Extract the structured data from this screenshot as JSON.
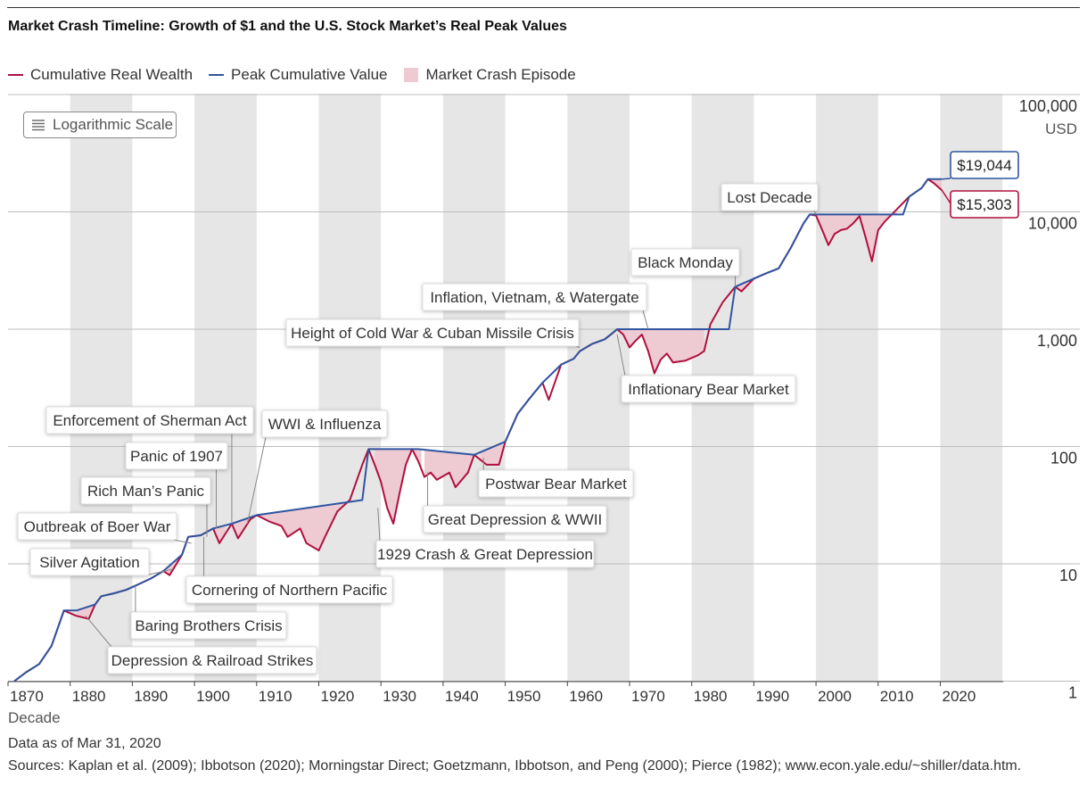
{
  "title": "Market Crash Timeline: Growth of $1 and the U.S. Stock Market’s Real Peak Values",
  "legend": [
    {
      "label": "Cumulative Real Wealth",
      "color": "#b0103e",
      "kind": "line"
    },
    {
      "label": "Peak Cumulative Value",
      "color": "#2f55a0",
      "kind": "line"
    },
    {
      "label": "Market Crash Episode",
      "color": "#eecad3",
      "kind": "box"
    }
  ],
  "scale_badge": {
    "label": "Logarithmic Scale",
    "icon": "list-icon"
  },
  "footer": {
    "date": "Data as of Mar 31, 2020",
    "sources": "Sources: Kaplan et al. (2009); Ibbotson (2020); Morningstar Direct; Goetzmann, Ibbotson, and Peng (2000); Pierce (1982); www.econ.yale.edu/~shiller/data.htm."
  },
  "colors": {
    "wealth": "#b0103e",
    "peak": "#2f55a0",
    "crash_fill": "#eecad3",
    "band": "#e6e6e6",
    "grid": "#bdbdbd"
  },
  "chart_data": {
    "type": "line",
    "y_scale": "log",
    "ylim": [
      1,
      100000
    ],
    "xlim": [
      1870,
      2029
    ],
    "x_ticks": [
      "1870",
      "1880",
      "1890",
      "1900",
      "1910",
      "1920",
      "1930",
      "1940",
      "1950",
      "1960",
      "1970",
      "1980",
      "1990",
      "2000",
      "2010",
      "2020"
    ],
    "y_ticks": [
      {
        "value": 1,
        "label": "1"
      },
      {
        "value": 10,
        "label": "10"
      },
      {
        "value": 100,
        "label": "100"
      },
      {
        "value": 1000,
        "label": "1,000"
      },
      {
        "value": 10000,
        "label": "10,000"
      },
      {
        "value": 100000,
        "label": "100,000"
      }
    ],
    "y_unit": "USD",
    "xlabel": "Decade",
    "shaded_decades": [
      1880,
      1900,
      1920,
      1940,
      1960,
      1980,
      2000,
      2020
    ],
    "series": [
      {
        "name": "Cumulative Real Wealth",
        "x": [
          1871,
          1873,
          1875,
          1877,
          1879,
          1881,
          1883,
          1884,
          1885,
          1887,
          1889,
          1891,
          1893,
          1895,
          1896,
          1898,
          1899,
          1901,
          1903,
          1904,
          1906,
          1907,
          1909,
          1910,
          1912,
          1914,
          1915,
          1917,
          1918,
          1920,
          1921,
          1923,
          1925,
          1927,
          1928,
          1929,
          1930,
          1931,
          1932,
          1933,
          1934,
          1935,
          1936,
          1937,
          1938,
          1939,
          1941,
          1942,
          1944,
          1945,
          1947,
          1949,
          1950,
          1952,
          1954,
          1956,
          1957,
          1959,
          1961,
          1962,
          1964,
          1966,
          1967,
          1968,
          1969,
          1970,
          1971,
          1972,
          1973,
          1974,
          1975,
          1976,
          1977,
          1979,
          1981,
          1982,
          1983,
          1985,
          1987,
          1988,
          1990,
          1992,
          1994,
          1996,
          1998,
          1999,
          2000,
          2001,
          2002,
          2003,
          2004,
          2005,
          2006,
          2007,
          2008,
          2009,
          2010,
          2011,
          2013,
          2015,
          2017,
          2018,
          2019,
          2020.25
        ],
        "values": [
          1.0,
          1.2,
          1.4,
          2.0,
          4.0,
          3.6,
          3.4,
          4.5,
          5.3,
          5.6,
          6.0,
          6.7,
          7.5,
          8.7,
          8.0,
          12.0,
          17.0,
          17.5,
          20.0,
          15.0,
          22.0,
          16.5,
          24.0,
          26.0,
          23.0,
          21.0,
          17.0,
          20.0,
          15.0,
          13.0,
          17.0,
          28.0,
          35.0,
          70.0,
          95.0,
          70.0,
          50.0,
          30.0,
          22.0,
          40.0,
          70.0,
          95.0,
          75.0,
          55.0,
          60.0,
          52.0,
          60.0,
          45.0,
          60.0,
          85.0,
          70.0,
          70.0,
          110.0,
          190.0,
          260.0,
          350.0,
          250.0,
          500.0,
          560.0,
          650.0,
          750.0,
          820.0,
          900.0,
          1000.0,
          900.0,
          700.0,
          800.0,
          900.0,
          650.0,
          420.0,
          550.0,
          620.0,
          520.0,
          540.0,
          600.0,
          650.0,
          1100.0,
          1700.0,
          2300.0,
          2100.0,
          2700.0,
          3000.0,
          3300.0,
          5000.0,
          8000.0,
          9500.0,
          9300.0,
          7000.0,
          5200.0,
          6500.0,
          7000.0,
          7200.0,
          8000.0,
          9200.0,
          6000.0,
          3800.0,
          7000.0,
          8200.0,
          10500.0,
          13500.0,
          16000.0,
          19000.0,
          17500.0,
          15303
        ]
      },
      {
        "name": "Peak Cumulative Value",
        "x": [
          1871,
          1873,
          1875,
          1877,
          1879,
          1881,
          1884,
          1885,
          1887,
          1889,
          1891,
          1893,
          1895,
          1898,
          1899,
          1901,
          1903,
          1906,
          1910,
          1927,
          1928,
          1936,
          1945,
          1950,
          1952,
          1954,
          1956,
          1959,
          1961,
          1962,
          1964,
          1966,
          1968,
          1986,
          1987,
          1990,
          1992,
          1994,
          1996,
          1998,
          1999,
          2014,
          2015,
          2017,
          2018,
          2020.25
        ],
        "values": [
          1.0,
          1.2,
          1.4,
          2.0,
          4.0,
          4.0,
          4.5,
          5.3,
          5.6,
          6.0,
          6.7,
          7.5,
          8.7,
          12.0,
          17.0,
          17.5,
          20.0,
          22.0,
          26.0,
          35.0,
          95.0,
          95.0,
          85.0,
          110.0,
          190.0,
          260.0,
          350.0,
          500.0,
          560.0,
          650.0,
          750.0,
          820.0,
          1000.0,
          1000.0,
          2300.0,
          2700.0,
          3000.0,
          3300.0,
          5000.0,
          8000.0,
          9500.0,
          9500.0,
          13500.0,
          16000.0,
          19000.0,
          19044
        ]
      }
    ],
    "crash_episodes": [
      [
        1881,
        1884
      ],
      [
        1884.5,
        1885.5
      ],
      [
        1887.5,
        1888.5
      ],
      [
        1890,
        1891
      ],
      [
        1893,
        1894.5
      ],
      [
        1895.5,
        1898
      ],
      [
        1899,
        1900.5
      ],
      [
        1902.5,
        1905
      ],
      [
        1906,
        1909
      ],
      [
        1909.5,
        1924.5
      ],
      [
        1929,
        1936.5
      ],
      [
        1937,
        1945
      ],
      [
        1946,
        1949.5
      ],
      [
        1965,
        1968.5
      ],
      [
        1968.5,
        1982
      ],
      [
        1987,
        1989
      ],
      [
        2000,
        2013
      ],
      [
        2018,
        2020.25
      ]
    ],
    "callouts": [
      {
        "label": "$19,044",
        "series": "peak",
        "value": 19044
      },
      {
        "label": "$15,303",
        "series": "wealth",
        "value": 15303
      }
    ],
    "annotations": [
      {
        "label": "Lost Decade",
        "x": 2000
      },
      {
        "label": "Black Monday",
        "x": 1987
      },
      {
        "label": "Inflation, Vietnam, & Watergate",
        "x": 1973
      },
      {
        "label": "Height of Cold War & Cuban Missile Crisis",
        "x": 1962
      },
      {
        "label": "Inflationary Bear Market",
        "x": 1968
      },
      {
        "label": "Enforcement of Sherman Act",
        "x": 1906
      },
      {
        "label": "WWI & Influenza",
        "x": 1908
      },
      {
        "label": "Panic of 1907",
        "x": 1903
      },
      {
        "label": "Rich Man’s Panic",
        "x": 1902
      },
      {
        "label": "Outbreak of Boer War",
        "x": 1899
      },
      {
        "label": "Silver Agitation",
        "x": 1896
      },
      {
        "label": "Cornering of Northern Pacific",
        "x": 1901
      },
      {
        "label": "Baring Brothers Crisis",
        "x": 1890
      },
      {
        "label": "Depression & Railroad Strikes",
        "x": 1882
      },
      {
        "label": "1929 Crash & Great Depression",
        "x": 1929
      },
      {
        "label": "Great Depression & WWII",
        "x": 1937
      },
      {
        "label": "Postwar Bear Market",
        "x": 1946
      }
    ]
  }
}
